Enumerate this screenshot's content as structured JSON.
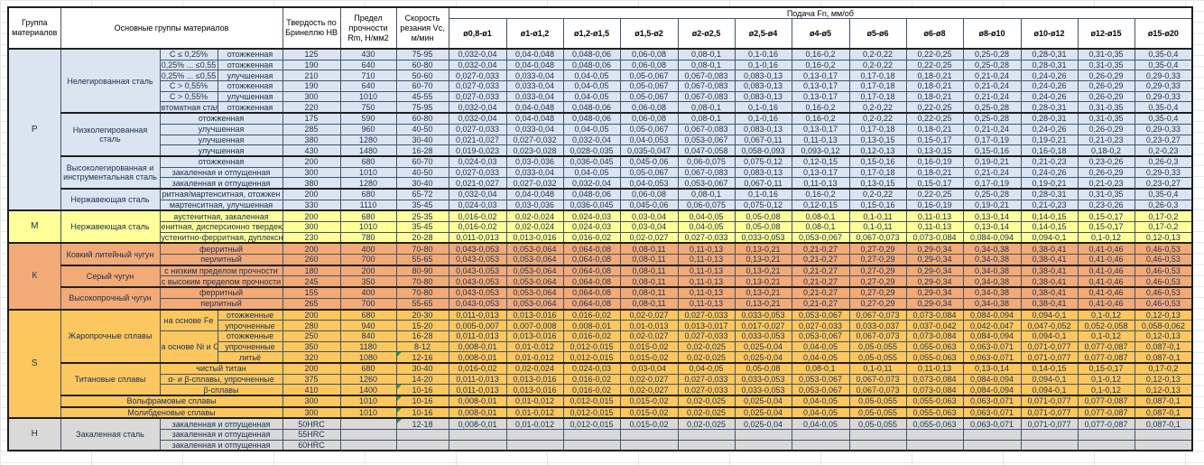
{
  "header": {
    "col_group": "Группа материалов",
    "col_material": "Основные группы материалов",
    "col_hardness": "Твердость по Бринеллю HB",
    "col_strength": "Предел прочности Rm, Н/мм2",
    "col_speed": "Скорость резания Vc, м/мин",
    "feed_title": "Подача Fn, мм/об",
    "feed_cols": [
      "ø0,8-ø1",
      "ø1-ø1,2",
      "ø1,2-ø1,5",
      "ø1,5-ø2",
      "ø2-ø2,5",
      "ø2,5-ø4",
      "ø4-ø5",
      "ø5-ø6",
      "ø6-ø8",
      "ø8-ø10",
      "ø10-ø12",
      "ø12-ø15",
      "ø15-ø20"
    ]
  },
  "colors": {
    "group_p": "#dbe5f1",
    "group_m": "#ffff99",
    "group_k": "#f2aa76",
    "group_s": "#fcc75e",
    "group_h": "#d9d9d9",
    "marker_green": "#2e9c3e"
  },
  "feed_patterns": {
    "A": [
      "0,032-0,04",
      "0,04-0,048",
      "0,048-0,06",
      "0,06-0,08",
      "0,08-0,1",
      "0,1-0,16",
      "0,16-0,2",
      "0,2-0,22",
      "0,22-0,25",
      "0,25-0,28",
      "0,28-0,31",
      "0,31-0,35",
      "0,35-0,4"
    ],
    "B": [
      "0,027-0,033",
      "0,033-0,04",
      "0,04-0,05",
      "0,05-0,067",
      "0,067-0,083",
      "0,083-0,13",
      "0,13-0,17",
      "0,17-0,18",
      "0,18-0,21",
      "0,21-0,24",
      "0,24-0,26",
      "0,26-0,29",
      "0,29-0,33"
    ],
    "C": [
      "0,021-0,027",
      "0,027-0,032",
      "0,032-0,04",
      "0,04-0,053",
      "0,053-0,067",
      "0,067-0,11",
      "0,11-0,13",
      "0,13-0,15",
      "0,15-0,17",
      "0,17-0,19",
      "0,19-0,21",
      "0,21-0,23",
      "0,23-0,27"
    ],
    "D": [
      "0,019-0,023",
      "0,023-0,028",
      "0,028-0,035",
      "0,035-0,047",
      "0,047-0,058",
      "0,058-0,093",
      "0,093-0,12",
      "0,12-0,13",
      "0,13-0,15",
      "0,15-0,16",
      "0,16-0,18",
      "0,18-0,2",
      "0,2-0,23"
    ],
    "E": [
      "0,024-0,03",
      "0,03-0,036",
      "0,036-0,045",
      "0,045-0,06",
      "0,06-0,075",
      "0,075-0,12",
      "0,12-0,15",
      "0,15-0,16",
      "0,16-0,19",
      "0,19-0,21",
      "0,21-0,23",
      "0,23-0,26",
      "0,26-0,3"
    ],
    "F": [
      "0,016-0,02",
      "0,02-0,024",
      "0,024-0,03",
      "0,03-0,04",
      "0,04-0,05",
      "0,05-0,08",
      "0,08-0,1",
      "0,1-0,11",
      "0,11-0,13",
      "0,13-0,14",
      "0,14-0,15",
      "0,15-0,17",
      "0,17-0,2"
    ],
    "G": [
      "0,011-0,013",
      "0,013-0,016",
      "0,016-0,02",
      "0,02-0,027",
      "0,027-0,033",
      "0,033-0,053",
      "0,053-0,067",
      "0,067-0,073",
      "0,073-0,084",
      "0,084-0,094",
      "0,094-0,1",
      "0,1-0,12",
      "0,12-0,13"
    ],
    "H": [
      "0,005-0,007",
      "0,007-0,008",
      "0,008-0,01",
      "0,01-0,013",
      "0,013-0,017",
      "0,017-0,027",
      "0,027-0,033",
      "0,033-0,037",
      "0,037-0,042",
      "0,042-0,047",
      "0,047-0,052",
      "0,052-0,058",
      "0,058-0,062"
    ],
    "I": [
      "0,008-0,01",
      "0,01-0,012",
      "0,012-0,015",
      "0,015-0,02",
      "0,02-0,025",
      "0,025-0,04",
      "0,04-0,05",
      "0,05-0,055",
      "0,055-0,063",
      "0,063-0,071",
      "0,071-0,077",
      "0,077-0,087",
      "0,087-0,1"
    ],
    "K": [
      "0,043-0,053",
      "0,053-0,064",
      "0,064-0,08",
      "0,08-0,11",
      "0,11-0,13",
      "0,13-0,21",
      "0,21-0,27",
      "0,27-0,29",
      "0,29-0,34",
      "0,34-0,38",
      "0,38-0,41",
      "0,41-0,46",
      "0,46-0,53"
    ],
    "N": [
      "",
      "",
      "",
      "",
      "",
      "",
      "",
      "",
      "",
      "",
      "",
      "",
      ""
    ]
  },
  "rows": [
    {
      "g": "p",
      "cells": [
        {
          "t": "P",
          "rs": 15,
          "n": "group-label"
        },
        {
          "t": "Нелегированная сталь",
          "rs": 6
        },
        {
          "t": "C ≤ 0,25%"
        },
        {
          "t": "отожженная"
        },
        {
          "t": "125"
        },
        {
          "t": "430"
        },
        {
          "t": "75-95"
        }
      ],
      "feed": "A"
    },
    {
      "g": "p",
      "cells": [
        {
          "t": "0,25% ... ≤0,55"
        },
        {
          "t": "отожженная"
        },
        {
          "t": "190"
        },
        {
          "t": "640"
        },
        {
          "t": "60-80"
        }
      ],
      "feed": "A"
    },
    {
      "g": "p",
      "cells": [
        {
          "t": "0,25% ... ≤0,55"
        },
        {
          "t": "улучшенная"
        },
        {
          "t": "210"
        },
        {
          "t": "710"
        },
        {
          "t": "50-60"
        }
      ],
      "feed": "B"
    },
    {
      "g": "p",
      "cells": [
        {
          "t": "C > 0,55%"
        },
        {
          "t": "отожженная"
        },
        {
          "t": "190"
        },
        {
          "t": "640"
        },
        {
          "t": "60-70"
        }
      ],
      "feed": "B"
    },
    {
      "g": "p",
      "cells": [
        {
          "t": "C > 0,55%"
        },
        {
          "t": "улучшенная"
        },
        {
          "t": "300"
        },
        {
          "t": "1010"
        },
        {
          "t": "45-55"
        }
      ],
      "feed": "B"
    },
    {
      "g": "p",
      "cells": [
        {
          "t": "втоматная стал"
        },
        {
          "t": "отожженная"
        },
        {
          "t": "220"
        },
        {
          "t": "750"
        },
        {
          "t": "75-95"
        }
      ],
      "feed": "A"
    },
    {
      "g": "p",
      "tb": 1,
      "cells": [
        {
          "t": "Низколегированная сталь",
          "rs": 4,
          "cl": "wrap"
        },
        {
          "t": "отожженная",
          "cs": 2
        },
        {
          "t": "175"
        },
        {
          "t": "590"
        },
        {
          "t": "60-80"
        }
      ],
      "feed": "A"
    },
    {
      "g": "p",
      "cells": [
        {
          "t": "улучшенная",
          "cs": 2
        },
        {
          "t": "285"
        },
        {
          "t": "960"
        },
        {
          "t": "40-50"
        }
      ],
      "feed": "B"
    },
    {
      "g": "p",
      "cells": [
        {
          "t": "улучшенная",
          "cs": 2
        },
        {
          "t": "380"
        },
        {
          "t": "1280"
        },
        {
          "t": "30-40"
        }
      ],
      "feed": "C"
    },
    {
      "g": "p",
      "cells": [
        {
          "t": "улучшенная",
          "cs": 2
        },
        {
          "t": "430"
        },
        {
          "t": "1480"
        },
        {
          "t": "16-28"
        }
      ],
      "feed": "D"
    },
    {
      "g": "p",
      "tb": 1,
      "cells": [
        {
          "t": "Высоколегированная и инструментальная сталь",
          "rs": 3,
          "cl": "wrap"
        },
        {
          "t": "отожженная",
          "cs": 2
        },
        {
          "t": "200"
        },
        {
          "t": "680"
        },
        {
          "t": "60-70"
        }
      ],
      "feed": "E"
    },
    {
      "g": "p",
      "cells": [
        {
          "t": "закаленная и отпущенная",
          "cs": 2
        },
        {
          "t": "300"
        },
        {
          "t": "1010"
        },
        {
          "t": "40-50"
        }
      ],
      "feed": "B"
    },
    {
      "g": "p",
      "cells": [
        {
          "t": "закаленная и отпущенная",
          "cs": 2
        },
        {
          "t": "380"
        },
        {
          "t": "1280"
        },
        {
          "t": "30-40"
        }
      ],
      "feed": "C"
    },
    {
      "g": "p",
      "tb": 1,
      "cells": [
        {
          "t": "Нержавеющая сталь",
          "rs": 2
        },
        {
          "t": "ритная/мартенситная, отожжен",
          "cs": 2
        },
        {
          "t": "200"
        },
        {
          "t": "680"
        },
        {
          "t": "65-72"
        }
      ],
      "feed": "A"
    },
    {
      "g": "p",
      "cells": [
        {
          "t": "мартенситная, улучшенная",
          "cs": 2
        },
        {
          "t": "330"
        },
        {
          "t": "1110"
        },
        {
          "t": "35-45"
        }
      ],
      "feed": "E"
    },
    {
      "g": "m",
      "tb": 1,
      "cells": [
        {
          "t": "M",
          "rs": 3,
          "n": "group-label"
        },
        {
          "t": "Нержавеющая сталь",
          "rs": 3
        },
        {
          "t": "аустенитная, закаленная",
          "cs": 2
        },
        {
          "t": "200"
        },
        {
          "t": "680"
        },
        {
          "t": "25-35"
        }
      ],
      "feed": "F"
    },
    {
      "g": "m",
      "cells": [
        {
          "t": "енитная, дисперсионно твердею",
          "cs": 2
        },
        {
          "t": "300"
        },
        {
          "t": "1010"
        },
        {
          "t": "35-45"
        }
      ],
      "feed": "F"
    },
    {
      "g": "m",
      "cells": [
        {
          "t": "устенитно-ферритная, дуплексна",
          "cs": 2
        },
        {
          "t": "230"
        },
        {
          "t": "780"
        },
        {
          "t": "20-28"
        }
      ],
      "feed": "G"
    },
    {
      "g": "k",
      "tb": 1,
      "cells": [
        {
          "t": "К",
          "rs": 6,
          "n": "group-label"
        },
        {
          "t": "Ковкий литейный чугун",
          "rs": 2
        },
        {
          "t": "ферритный",
          "cs": 2
        },
        {
          "t": "200"
        },
        {
          "t": "400"
        },
        {
          "t": "70-80"
        }
      ],
      "feed": "K"
    },
    {
      "g": "k",
      "cells": [
        {
          "t": "перлитный",
          "cs": 2
        },
        {
          "t": "260"
        },
        {
          "t": "700"
        },
        {
          "t": "55-65"
        }
      ],
      "feed": "K"
    },
    {
      "g": "k",
      "tb": 1,
      "cells": [
        {
          "t": "Серый чугун",
          "rs": 2
        },
        {
          "t": "с низким пределом прочности",
          "cs": 2
        },
        {
          "t": "180"
        },
        {
          "t": "200"
        },
        {
          "t": "80-90"
        }
      ],
      "feed": "K"
    },
    {
      "g": "k",
      "cells": [
        {
          "t": "с высоким пределом прочности",
          "cs": 2
        },
        {
          "t": "245"
        },
        {
          "t": "350"
        },
        {
          "t": "70-80"
        }
      ],
      "feed": "K"
    },
    {
      "g": "k",
      "tb": 1,
      "cells": [
        {
          "t": "Высокопрочный чугун",
          "rs": 2
        },
        {
          "t": "ферритный",
          "cs": 2
        },
        {
          "t": "155"
        },
        {
          "t": "400"
        },
        {
          "t": "70-80"
        }
      ],
      "feed": "K"
    },
    {
      "g": "k",
      "cells": [
        {
          "t": "перлитный",
          "cs": 2
        },
        {
          "t": "265"
        },
        {
          "t": "700"
        },
        {
          "t": "55-65"
        }
      ],
      "feed": "K"
    },
    {
      "g": "s",
      "tb": 1,
      "cells": [
        {
          "t": "S",
          "rs": 10,
          "n": "group-label"
        },
        {
          "t": "Жаропрочные сплавы",
          "rs": 5,
          "cl": "wrap"
        },
        {
          "t": "на основе Fe",
          "rs": 2
        },
        {
          "t": "отожженные"
        },
        {
          "t": "200"
        },
        {
          "t": "680"
        },
        {
          "t": "20-30"
        }
      ],
      "feed": "G"
    },
    {
      "g": "s",
      "cells": [
        {
          "t": "упрочненные"
        },
        {
          "t": "280"
        },
        {
          "t": "940"
        },
        {
          "t": "15-20"
        }
      ],
      "feed": "H"
    },
    {
      "g": "s",
      "cells": [
        {
          "t": "а основе Ni и C",
          "rs": 3
        },
        {
          "t": "отожженные"
        },
        {
          "t": "250"
        },
        {
          "t": "840"
        },
        {
          "t": "16-28"
        }
      ],
      "feed": "G"
    },
    {
      "g": "s",
      "cells": [
        {
          "t": "упрочненные"
        },
        {
          "t": "350"
        },
        {
          "t": "1180"
        },
        {
          "t": "8-12"
        }
      ],
      "feed": "I"
    },
    {
      "g": "s",
      "cells": [
        {
          "t": "литьё"
        },
        {
          "t": "320"
        },
        {
          "t": "1080"
        },
        {
          "t": "12-16",
          "m": 1
        }
      ],
      "feed": "I"
    },
    {
      "g": "s",
      "tb": 1,
      "cells": [
        {
          "t": "Титановые сплавы",
          "rs": 3
        },
        {
          "t": "чистый титан",
          "cs": 2
        },
        {
          "t": "200"
        },
        {
          "t": "680"
        },
        {
          "t": "30-40"
        }
      ],
      "feed": "F"
    },
    {
      "g": "s",
      "cells": [
        {
          "t": "α- и β-сплавы, упрочненные",
          "cs": 2
        },
        {
          "t": "375"
        },
        {
          "t": "1260"
        },
        {
          "t": "14-20"
        }
      ],
      "feed": "G"
    },
    {
      "g": "s",
      "cells": [
        {
          "t": "β-сплавы",
          "cs": 2
        },
        {
          "t": "410"
        },
        {
          "t": "1400"
        },
        {
          "t": "10-16",
          "m": 1
        }
      ],
      "feed": "G"
    },
    {
      "g": "s",
      "tb": 1,
      "cells": [
        {
          "t": "Вольфрамовые сплавы",
          "cs": 3
        },
        {
          "t": "300"
        },
        {
          "t": "1010"
        },
        {
          "t": "10-16",
          "m": 1
        }
      ],
      "feed": "I"
    },
    {
      "g": "s",
      "tb": 1,
      "cells": [
        {
          "t": "Молибденовые сплавы",
          "cs": 3
        },
        {
          "t": "300"
        },
        {
          "t": "1010"
        },
        {
          "t": "10-16",
          "m": 1
        }
      ],
      "feed": "I"
    },
    {
      "g": "h",
      "tb": 1,
      "cells": [
        {
          "t": "H",
          "rs": 3,
          "n": "group-label"
        },
        {
          "t": "Закаленная сталь",
          "rs": 3
        },
        {
          "t": "закаленная и отпущенная",
          "cs": 2
        },
        {
          "t": "50HRC"
        },
        {
          "t": ""
        },
        {
          "t": "12-18",
          "m": 1
        }
      ],
      "feed": "I"
    },
    {
      "g": "h",
      "cells": [
        {
          "t": "закаленная и отпущенная",
          "cs": 2
        },
        {
          "t": "55HRC"
        },
        {
          "t": ""
        },
        {
          "t": ""
        }
      ],
      "feed": "N"
    },
    {
      "g": "h",
      "cells": [
        {
          "t": "закаленная и отпущенная",
          "cs": 2
        },
        {
          "t": "60HRC"
        },
        {
          "t": ""
        },
        {
          "t": ""
        }
      ],
      "feed": "N"
    }
  ]
}
